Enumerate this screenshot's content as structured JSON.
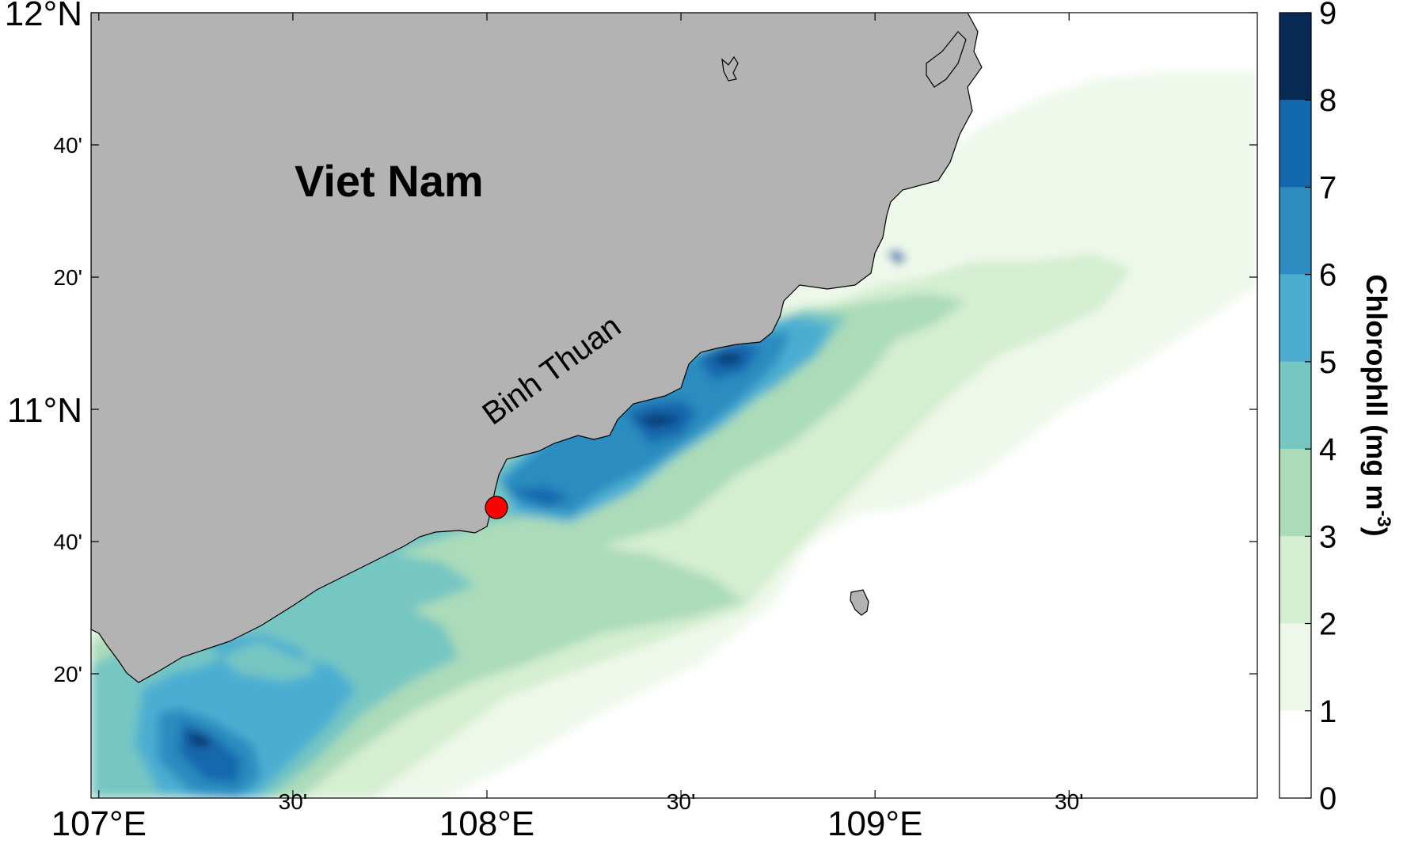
{
  "map": {
    "country_label": "Viet Nam",
    "province_label": "Binh Thuan",
    "land_color": "#b3b3b3",
    "marker_color": "#ff0000",
    "x_ticks": [
      {
        "lon": 107.0,
        "label": "107°E",
        "major": true
      },
      {
        "lon": 107.5,
        "label": "30'",
        "major": false
      },
      {
        "lon": 108.0,
        "label": "108°E",
        "major": true
      },
      {
        "lon": 108.5,
        "label": "30'",
        "major": false
      },
      {
        "lon": 109.0,
        "label": "109°E",
        "major": true
      },
      {
        "lon": 109.5,
        "label": "30'",
        "major": false
      }
    ],
    "y_ticks": [
      {
        "lat": 12.0,
        "label": "12°N",
        "major": true
      },
      {
        "lat": 11.6667,
        "label": "40'",
        "major": false
      },
      {
        "lat": 11.3333,
        "label": "20'",
        "major": false
      },
      {
        "lat": 11.0,
        "label": "11°N",
        "major": true
      },
      {
        "lat": 10.6667,
        "label": "40'",
        "major": false
      },
      {
        "lat": 10.3333,
        "label": "20'",
        "major": false
      }
    ]
  },
  "colorbar": {
    "title": "Chlorophll (mg m",
    "title_sup": "-3",
    "title_end": ")",
    "levels": [
      {
        "value": 0,
        "label": "0",
        "color": "#ffffff"
      },
      {
        "value": 1,
        "label": "1",
        "color": "#eef8ea"
      },
      {
        "value": 2,
        "label": "2",
        "color": "#d4eed0"
      },
      {
        "value": 3,
        "label": "3",
        "color": "#abdbb9"
      },
      {
        "value": 4,
        "label": "4",
        "color": "#76c6c2"
      },
      {
        "value": 5,
        "label": "5",
        "color": "#4baed1"
      },
      {
        "value": 6,
        "label": "6",
        "color": "#2c8cbf"
      },
      {
        "value": 7,
        "label": "7",
        "color": "#1268ad"
      },
      {
        "value": 8,
        "label": "8",
        "color": "#0b4585"
      },
      {
        "value": 9,
        "label": "9",
        "color": "#082a55"
      }
    ]
  }
}
